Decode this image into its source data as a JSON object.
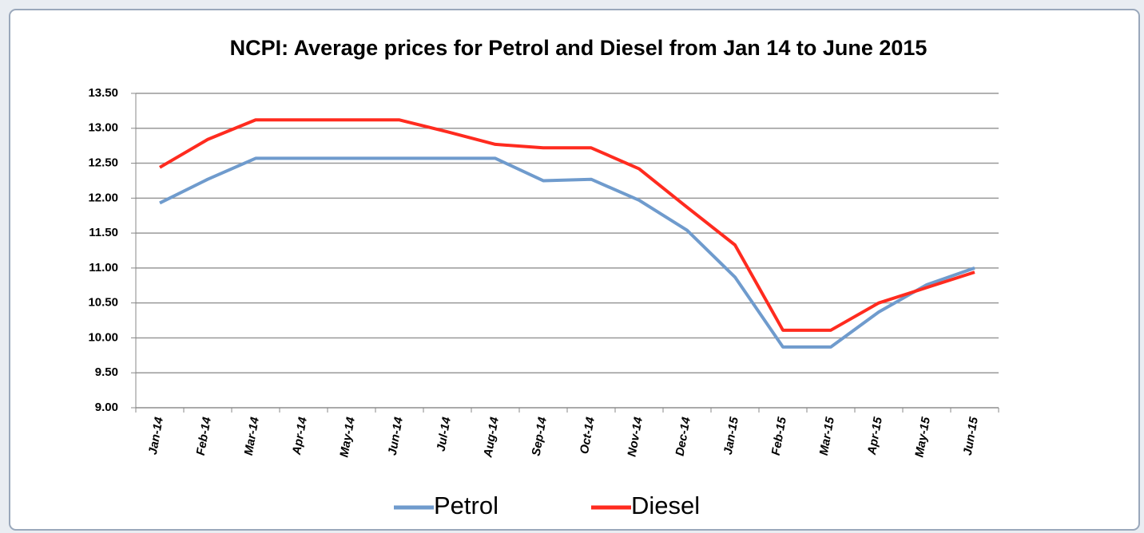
{
  "chart_data": {
    "type": "line",
    "title": "NCPI: Average prices for Petrol and Diesel from Jan 14 to June 2015",
    "categories": [
      "Jan-14",
      "Feb-14",
      "Mar-14",
      "Apr-14",
      "May-14",
      "Jun-14",
      "Jul-14",
      "Aug-14",
      "Sep-14",
      "Oct-14",
      "Nov-14",
      "Dec-14",
      "Jan-15",
      "Feb-15",
      "Mar-15",
      "Apr-15",
      "May-15",
      "Jun-15"
    ],
    "series": [
      {
        "name": "Petrol",
        "color": "#6f9bcd",
        "values": [
          11.93,
          12.27,
          12.57,
          12.57,
          12.57,
          12.57,
          12.57,
          12.57,
          12.25,
          12.27,
          11.97,
          11.54,
          10.87,
          9.87,
          9.87,
          10.37,
          10.76,
          11.0
        ]
      },
      {
        "name": "Diesel",
        "color": "#ff2b1f",
        "values": [
          12.44,
          12.84,
          13.12,
          13.12,
          13.12,
          13.12,
          12.95,
          12.77,
          12.72,
          12.72,
          12.42,
          11.87,
          11.33,
          10.11,
          10.11,
          10.5,
          10.72,
          10.94
        ]
      }
    ],
    "ylim": [
      9,
      13.5
    ],
    "yticks": [
      {
        "value": 9,
        "label": "9.00"
      },
      {
        "value": 9.5,
        "label": "9.50"
      },
      {
        "value": 10,
        "label": "10.00"
      },
      {
        "value": 10.5,
        "label": "10.50"
      },
      {
        "value": 11,
        "label": "11.00"
      },
      {
        "value": 11.5,
        "label": "11.50"
      },
      {
        "value": 12,
        "label": "12.00"
      },
      {
        "value": 12.5,
        "label": "12.50"
      },
      {
        "value": 13,
        "label": "13.00"
      },
      {
        "value": 13.5,
        "label": "13.50"
      }
    ],
    "grid": true,
    "legend": "bottom"
  }
}
